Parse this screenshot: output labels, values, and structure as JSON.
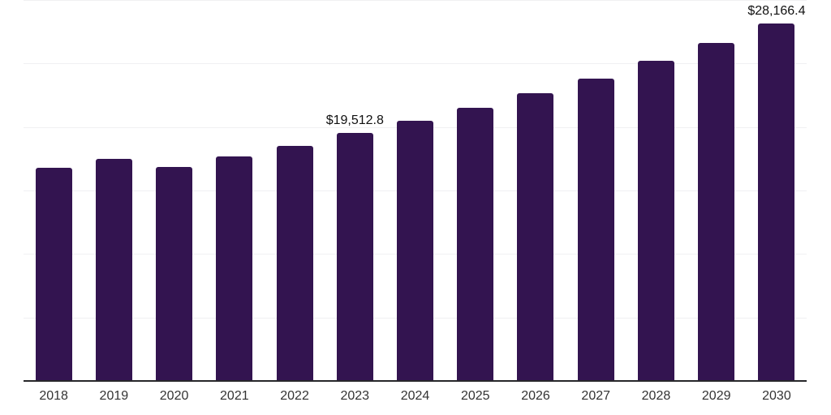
{
  "chart_data": {
    "type": "bar",
    "title": "",
    "xlabel": "",
    "ylabel": "",
    "categories": [
      "2018",
      "2019",
      "2020",
      "2021",
      "2022",
      "2023",
      "2024",
      "2025",
      "2026",
      "2027",
      "2028",
      "2029",
      "2030"
    ],
    "values": [
      16790,
      17520,
      16850,
      17700,
      18510,
      19512.8,
      20470,
      21530,
      22660,
      23830,
      25210,
      26640,
      28166.4
    ],
    "ylim": [
      0,
      30000
    ],
    "grid_step": 5000,
    "grid": "horizontal-only",
    "legend_position": "none",
    "y_tick_labels_visible": false,
    "annotations": [
      {
        "category": "2023",
        "text": "$19,512.8"
      },
      {
        "category": "2030",
        "text": "$28,166.4"
      }
    ],
    "colors": {
      "bar": "#331450",
      "axis_line": "#27272a",
      "gridline": "#f0f0f2",
      "annotation_text": "#111111",
      "tick_label_text": "#333333",
      "background": "#ffffff"
    }
  }
}
